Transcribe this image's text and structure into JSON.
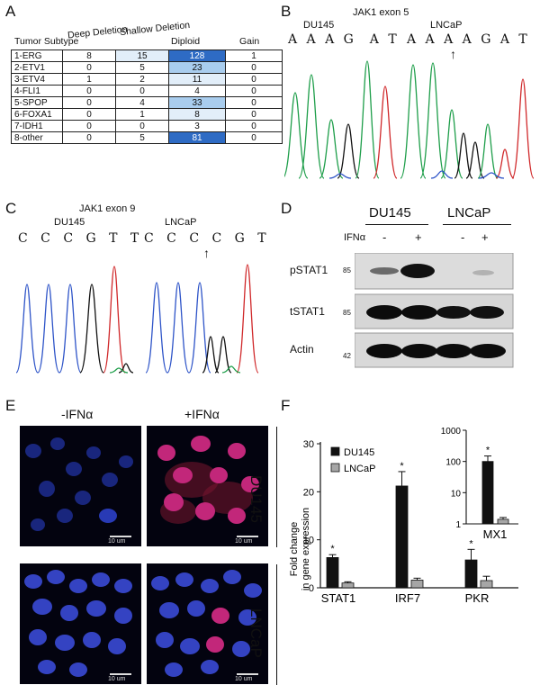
{
  "panels": {
    "a": "A",
    "b": "B",
    "c": "C",
    "d": "D",
    "e": "E",
    "f": "F"
  },
  "tableA": {
    "headers": [
      "Tumor Subtype",
      "Deep Deletion",
      "Shallow Deletion",
      "Diploid",
      "Gain"
    ],
    "rows": [
      {
        "subtype": "1-ERG",
        "deep": "8",
        "shallow": "15",
        "diploid": "128",
        "gain": "1"
      },
      {
        "subtype": "2-ETV1",
        "deep": "0",
        "shallow": "5",
        "diploid": "23",
        "gain": "0"
      },
      {
        "subtype": "3-ETV4",
        "deep": "1",
        "shallow": "2",
        "diploid": "11",
        "gain": "0"
      },
      {
        "subtype": "4-FLI1",
        "deep": "0",
        "shallow": "0",
        "diploid": "4",
        "gain": "0"
      },
      {
        "subtype": "5-SPOP",
        "deep": "0",
        "shallow": "4",
        "diploid": "33",
        "gain": "0"
      },
      {
        "subtype": "6-FOXA1",
        "deep": "0",
        "shallow": "1",
        "diploid": "8",
        "gain": "0"
      },
      {
        "subtype": "7-IDH1",
        "deep": "0",
        "shallow": "0",
        "diploid": "3",
        "gain": "0"
      },
      {
        "subtype": "8-other",
        "deep": "0",
        "shallow": "5",
        "diploid": "81",
        "gain": "0"
      }
    ],
    "colors": {
      "dark": "#2e6bc4",
      "mid": "#a9cdee",
      "light": "#e2eef9",
      "white": "#ffffff"
    }
  },
  "panelB": {
    "title": "JAK1 exon 5",
    "label_left": "DU145",
    "label_right": "LNCaP",
    "seq_left": "A A A G  A T",
    "seq_right": "A A A A G A T",
    "arrow": "↑"
  },
  "panelC": {
    "title": "JAK1 exon 9",
    "label_left": "DU145",
    "label_right": "LNCaP",
    "seq_left": "C C C G T T",
    "seq_right": "C C C C G T",
    "arrow": "↑"
  },
  "panelD": {
    "lane_groups": [
      "DU145",
      "LNCaP"
    ],
    "treatment_label": "IFNα",
    "treatment": [
      "-",
      "+",
      "-",
      "+"
    ],
    "bands": [
      {
        "name": "pSTAT1",
        "marker": "85"
      },
      {
        "name": "tSTAT1",
        "marker": "85"
      },
      {
        "name": "Actin",
        "marker": "42"
      }
    ]
  },
  "panelE": {
    "col_labels": [
      "-IFNα",
      "+IFNα"
    ],
    "row_labels": [
      "DU145",
      "LNCaP"
    ],
    "scale_bar": "10 um"
  },
  "chart_data": {
    "type": "bar",
    "ylabel": "Fold change in gene expression",
    "categories": [
      "STAT1",
      "IRF7",
      "PKR"
    ],
    "series": [
      {
        "name": "DU145",
        "values": [
          6.3,
          21.2,
          5.8
        ],
        "errors": [
          0.6,
          3.0,
          2.2
        ],
        "color": "#111111"
      },
      {
        "name": "LNCaP",
        "values": [
          1.0,
          1.6,
          1.5
        ],
        "errors": [
          0.25,
          0.4,
          0.9
        ],
        "color": "#a6a6a6"
      }
    ],
    "ylim": [
      0,
      30
    ],
    "yticks": [
      "0",
      "10",
      "20",
      "30"
    ],
    "significance": "*",
    "legend_placement": "top-left",
    "inset": {
      "type": "bar",
      "scale": "log",
      "categories": [
        "MX1"
      ],
      "series": [
        {
          "name": "DU145",
          "values": [
            100
          ],
          "err_hi": 150
        },
        {
          "name": "LNCaP",
          "values": [
            1.4
          ],
          "err_hi": 1.6
        }
      ],
      "ylim": [
        1,
        1000
      ],
      "yticks": [
        "1",
        "10",
        "100",
        "1000"
      ]
    }
  }
}
